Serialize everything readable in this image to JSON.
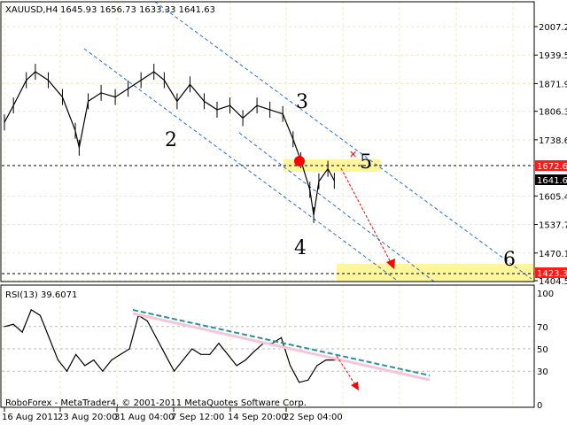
{
  "header": {
    "symbol": "XAUUSD,H4",
    "ohlc": "1645.93 1656.73 1633.33 1641.63"
  },
  "rsi_header": "RSI(13) 39.6071",
  "copyright": "RoboForex - MetaTrader4, © 2001-2011 MetaQuotes Software Corp.",
  "colors": {
    "price": "#000000",
    "channel": "#1e6fd9",
    "zone": "#fff59a",
    "target": "#ff0000",
    "rsi_trend": "#2a8fa0"
  },
  "annotations": {
    "w2": "2",
    "w3": "3",
    "w4": "4",
    "w5": "5",
    "w6": "6"
  },
  "chart_data": [
    {
      "type": "line",
      "title": "XAUUSD,H4",
      "ylim": [
        1404.5,
        2007.2
      ],
      "y_ticks": [
        "2007.20",
        "1939.55",
        "1871.90",
        "1806.30",
        "1738.65",
        "1605.40",
        "1537.75",
        "1470.10",
        "1404.50"
      ],
      "levels": {
        "red_upper": "1672.65",
        "current": "1641.63",
        "red_lower": "1423.33"
      },
      "x_ticks": [
        "16 Aug 2011",
        "23 Aug 20:00",
        "31 Aug 04:00",
        "7 Sep 12:00",
        "14 Sep 20:00",
        "22 Sep 04:00"
      ],
      "grid": true,
      "series": [
        {
          "x": [
            "08-16 00",
            "08-17 04",
            "08-18 20",
            "08-20 00",
            "08-21 16",
            "08-23 12",
            "08-25 04",
            "08-25 16",
            "08-26 20",
            "08-28 12",
            "08-30 08",
            "09-01 00",
            "09-02 16",
            "09-04 08",
            "09-05 16",
            "09-07 08",
            "09-09 00",
            "09-10 20",
            "09-12 12",
            "09-14 04",
            "09-15 20",
            "09-17 16",
            "09-19 08",
            "09-21 00",
            "09-22 08",
            "09-23 08",
            "09-24 12",
            "09-25 00",
            "09-25 16",
            "09-26 20",
            "09-27 16"
          ],
          "values": [
            1780,
            1820,
            1880,
            1900,
            1880,
            1840,
            1760,
            1720,
            1830,
            1850,
            1840,
            1860,
            1880,
            1900,
            1880,
            1830,
            1870,
            1830,
            1810,
            1820,
            1790,
            1820,
            1810,
            1800,
            1740,
            1690,
            1620,
            1560,
            1640,
            1670,
            1641.63
          ]
        }
      ]
    },
    {
      "type": "line",
      "title": "RSI(13) 39.6071",
      "ylim": [
        0,
        100
      ],
      "y_ticks": [
        "100",
        "70",
        "50",
        "30",
        "0"
      ],
      "series": [
        {
          "values": [
            70,
            72,
            65,
            85,
            80,
            60,
            40,
            30,
            45,
            35,
            40,
            30,
            40,
            45,
            50,
            80,
            75,
            60,
            45,
            30,
            40,
            50,
            45,
            45,
            55,
            45,
            35,
            40,
            48,
            55,
            55,
            60,
            35,
            20,
            22,
            35,
            40,
            40
          ]
        }
      ]
    }
  ]
}
